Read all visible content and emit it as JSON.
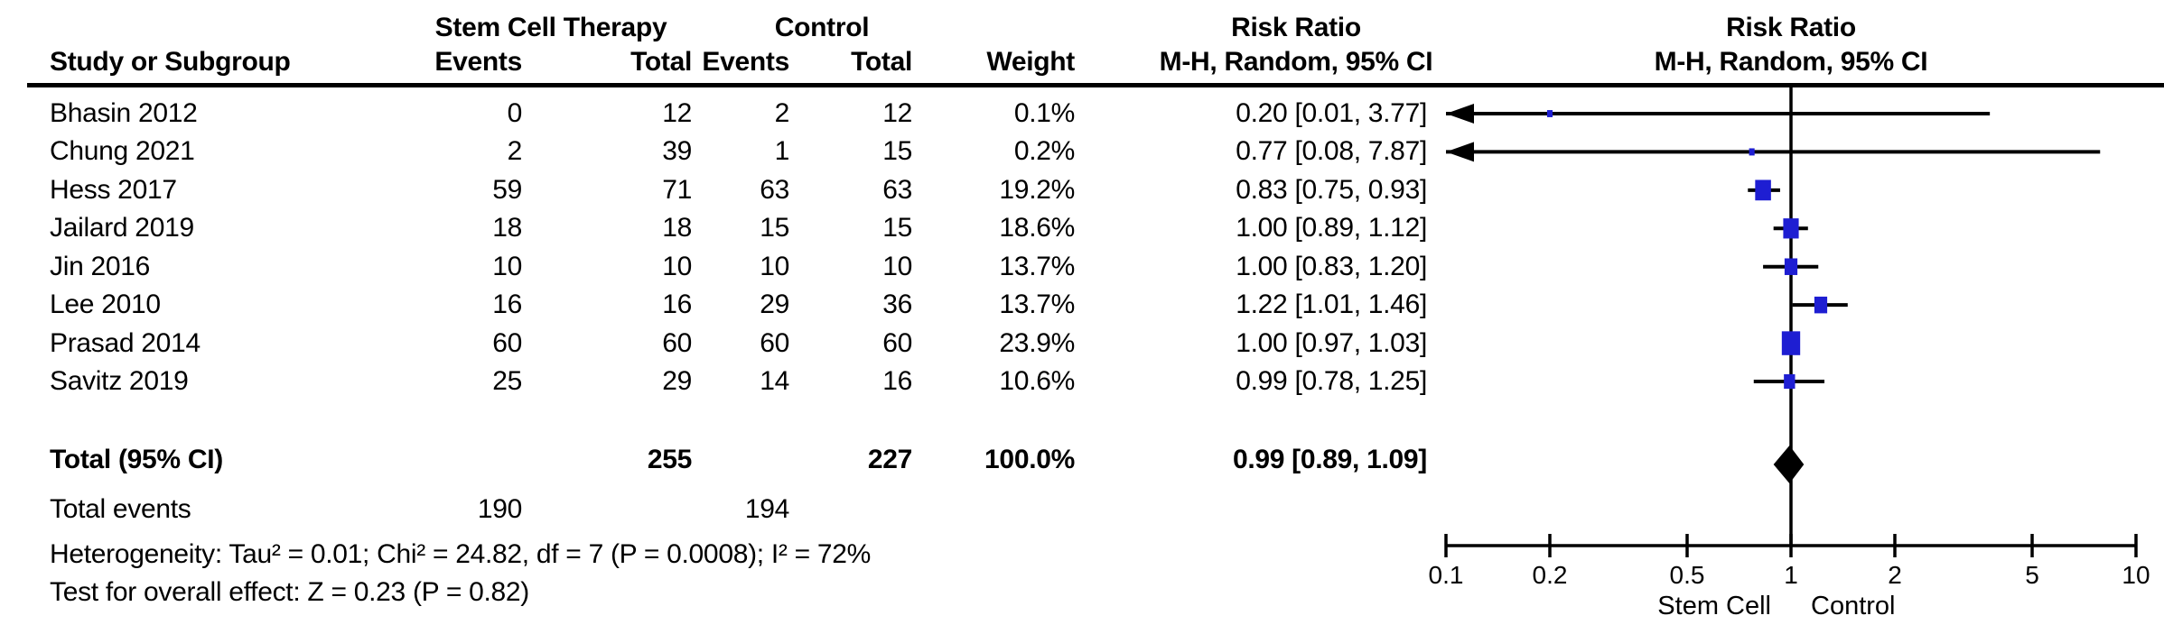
{
  "header": {
    "group1": "Stem Cell Therapy",
    "group2": "Control",
    "study_col": "Study or Subgroup",
    "events_col": "Events",
    "total_col": "Total",
    "weight_col": "Weight",
    "rr_col": "Risk Ratio",
    "mh_col": "M-H, Random, 95% CI"
  },
  "table": {
    "studies": [
      {
        "name": "Bhasin 2012",
        "sc_events": "0",
        "sc_total": "12",
        "c_events": "2",
        "c_total": "12",
        "weight": "0.1%",
        "rr_text": "0.20 [0.01, 3.77]"
      },
      {
        "name": "Chung 2021",
        "sc_events": "2",
        "sc_total": "39",
        "c_events": "1",
        "c_total": "15",
        "weight": "0.2%",
        "rr_text": "0.77 [0.08, 7.87]"
      },
      {
        "name": "Hess 2017",
        "sc_events": "59",
        "sc_total": "71",
        "c_events": "63",
        "c_total": "63",
        "weight": "19.2%",
        "rr_text": "0.83 [0.75, 0.93]"
      },
      {
        "name": "Jailard 2019",
        "sc_events": "18",
        "sc_total": "18",
        "c_events": "15",
        "c_total": "15",
        "weight": "18.6%",
        "rr_text": "1.00 [0.89, 1.12]"
      },
      {
        "name": "Jin 2016",
        "sc_events": "10",
        "sc_total": "10",
        "c_events": "10",
        "c_total": "10",
        "weight": "13.7%",
        "rr_text": "1.00 [0.83, 1.20]"
      },
      {
        "name": "Lee 2010",
        "sc_events": "16",
        "sc_total": "16",
        "c_events": "29",
        "c_total": "36",
        "weight": "13.7%",
        "rr_text": "1.22 [1.01, 1.46]"
      },
      {
        "name": "Prasad 2014",
        "sc_events": "60",
        "sc_total": "60",
        "c_events": "60",
        "c_total": "60",
        "weight": "23.9%",
        "rr_text": "1.00 [0.97, 1.03]"
      },
      {
        "name": "Savitz 2019",
        "sc_events": "25",
        "sc_total": "29",
        "c_events": "14",
        "c_total": "16",
        "weight": "10.6%",
        "rr_text": "0.99 [0.78, 1.25]"
      }
    ],
    "total_row": {
      "label": "Total (95% CI)",
      "sc_total": "255",
      "c_total": "227",
      "weight": "100.0%",
      "rr_text": "0.99 [0.89, 1.09]"
    },
    "total_events_row": {
      "label": "Total events",
      "sc_events": "190",
      "c_events": "194"
    }
  },
  "footer": {
    "heterogeneity": "Heterogeneity: Tau² = 0.01; Chi² = 24.82, df = 7 (P = 0.0008); I² = 72%",
    "overall_effect": "Test for overall effect: Z = 0.23 (P = 0.82)"
  },
  "axis": {
    "tick_labels": [
      "0.1",
      "0.2",
      "0.5",
      "1",
      "2",
      "5",
      "10"
    ],
    "favours_left": "Stem Cell",
    "favours_right": "Control"
  },
  "colors": {
    "marker_blue": "#1E1ED2",
    "line_black": "#000000",
    "background": "#FFFFFF"
  },
  "chart_data": {
    "type": "forest",
    "title": "Risk Ratio  M-H, Random, 95% CI",
    "x_scale": "log10",
    "xlim": [
      0.1,
      10
    ],
    "x_ticks": [
      0.1,
      0.2,
      0.5,
      1,
      2,
      5,
      10
    ],
    "null_line": 1,
    "favours": {
      "left": "Stem Cell",
      "right": "Control"
    },
    "studies": [
      {
        "label": "Bhasin 2012",
        "rr": 0.2,
        "ci": [
          0.01,
          3.77
        ],
        "weight_pct": 0.1
      },
      {
        "label": "Chung 2021",
        "rr": 0.77,
        "ci": [
          0.08,
          7.87
        ],
        "weight_pct": 0.2
      },
      {
        "label": "Hess 2017",
        "rr": 0.83,
        "ci": [
          0.75,
          0.93
        ],
        "weight_pct": 19.2
      },
      {
        "label": "Jailard 2019",
        "rr": 1.0,
        "ci": [
          0.89,
          1.12
        ],
        "weight_pct": 18.6
      },
      {
        "label": "Jin 2016",
        "rr": 1.0,
        "ci": [
          0.83,
          1.2
        ],
        "weight_pct": 13.7
      },
      {
        "label": "Lee 2010",
        "rr": 1.22,
        "ci": [
          1.01,
          1.46
        ],
        "weight_pct": 13.7
      },
      {
        "label": "Prasad 2014",
        "rr": 1.0,
        "ci": [
          0.97,
          1.03
        ],
        "weight_pct": 23.9
      },
      {
        "label": "Savitz 2019",
        "rr": 0.99,
        "ci": [
          0.78,
          1.25
        ],
        "weight_pct": 10.6
      }
    ],
    "summary": {
      "label": "Total (95% CI)",
      "rr": 0.99,
      "ci": [
        0.89,
        1.09
      ],
      "weight_pct": 100.0
    },
    "heterogeneity": "Tau² = 0.01; Chi² = 24.82, df = 7 (P = 0.0008); I² = 72%",
    "overall_effect": "Z = 0.23 (P = 0.82)"
  }
}
